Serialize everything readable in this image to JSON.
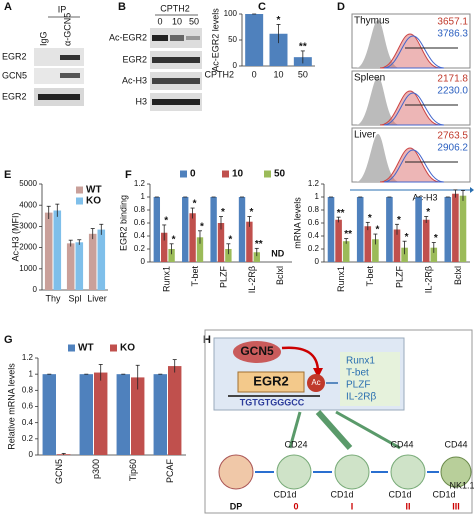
{
  "panel_labels": [
    "A",
    "B",
    "C",
    "D",
    "E",
    "F",
    "G",
    "H"
  ],
  "blots": {
    "A": {
      "header": "IP",
      "lanes": [
        "IgG",
        "α-GCN5"
      ],
      "rows": [
        "EGR2",
        "GCN5",
        "EGR2"
      ]
    },
    "B": {
      "header": "CPTH2",
      "lanes": [
        "0",
        "10",
        "50"
      ],
      "rows": [
        "Ac-EGR2",
        "EGR2",
        "Ac-H3",
        "H3"
      ]
    }
  },
  "histograms": {
    "axis_label": "Ac-H3",
    "panels": [
      {
        "tissue": "Thymus",
        "wt": "3657.1",
        "ko": "3786.3"
      },
      {
        "tissue": "Spleen",
        "wt": "2171.8",
        "ko": "2230.0"
      },
      {
        "tissue": "Liver",
        "wt": "2763.5",
        "ko": "2906.2"
      }
    ]
  },
  "chart_data": [
    {
      "type": "bar",
      "ylabel": "Ac-EGR2 levels",
      "xlabel": "CPTH2",
      "categories": [
        "0",
        "10",
        "50"
      ],
      "ylim": [
        0,
        100
      ],
      "yticks": [
        0,
        50,
        100
      ],
      "series": [
        {
          "color": "#4f81bd",
          "values": [
            100,
            62,
            17
          ],
          "errors": [
            0,
            18,
            12
          ],
          "significance": [
            null,
            "*",
            "**"
          ]
        }
      ]
    },
    {
      "type": "bar",
      "ylabel": "Ac-H3 (MFI)",
      "categories": [
        "Thy",
        "Spl",
        "Liver"
      ],
      "ylim": [
        0,
        5000
      ],
      "yticks": [
        0,
        1000,
        2000,
        3000,
        4000,
        5000
      ],
      "legend": "top-right",
      "series": [
        {
          "name": "WT",
          "color": "#c9a09a",
          "values": [
            3650,
            2200,
            2650
          ],
          "errors": [
            300,
            150,
            250
          ]
        },
        {
          "name": "KO",
          "color": "#7fbfea",
          "values": [
            3750,
            2250,
            2850
          ],
          "errors": [
            300,
            120,
            250
          ]
        }
      ]
    },
    {
      "type": "bar",
      "ylabel": "EGR2 binding",
      "categories": [
        "Runx1",
        "T-bet",
        "PLZF",
        "IL-2Rβ",
        "Bclxl"
      ],
      "ylim": [
        0,
        1.2
      ],
      "yticks": [
        0,
        0.2,
        0.4,
        0.6,
        0.8,
        1,
        1.2
      ],
      "legend": "top",
      "missing_label": "ND",
      "series": [
        {
          "name": "0",
          "color": "#4f81bd",
          "values": [
            1,
            1,
            1,
            1,
            null
          ],
          "errors": [
            0,
            0,
            0,
            0,
            null
          ]
        },
        {
          "name": "10",
          "color": "#c0504d",
          "values": [
            0.45,
            0.75,
            0.6,
            0.62,
            null
          ],
          "errors": [
            0.12,
            0.08,
            0.1,
            0.08,
            null
          ],
          "significance": [
            "*",
            "*",
            "*",
            "*",
            null
          ]
        },
        {
          "name": "50",
          "color": "#9bbb59",
          "values": [
            0.2,
            0.38,
            0.2,
            0.15,
            null
          ],
          "errors": [
            0.08,
            0.1,
            0.08,
            0.06,
            null
          ],
          "significance": [
            "*",
            "*",
            "*",
            "**",
            null
          ]
        }
      ]
    },
    {
      "type": "bar",
      "ylabel": "mRNA levels",
      "categories": [
        "Runx1",
        "T-bet",
        "PLZF",
        "IL-2Rβ",
        "Bclxl"
      ],
      "ylim": [
        0,
        1.2
      ],
      "yticks": [
        0,
        0.2,
        0.4,
        0.6,
        0.8,
        1,
        1.2
      ],
      "series": [
        {
          "color": "#4f81bd",
          "values": [
            1,
            1,
            1,
            1,
            1
          ],
          "errors": [
            0,
            0,
            0,
            0,
            0
          ]
        },
        {
          "color": "#c0504d",
          "values": [
            0.65,
            0.55,
            0.5,
            0.65,
            1.05
          ],
          "errors": [
            0.04,
            0.06,
            0.08,
            0.05,
            0.06
          ],
          "significance": [
            "**",
            "*",
            "*",
            "*",
            null
          ]
        },
        {
          "color": "#9bbb59",
          "values": [
            0.32,
            0.35,
            0.22,
            0.22,
            1.02
          ],
          "errors": [
            0.04,
            0.08,
            0.1,
            0.08,
            0.08
          ],
          "significance": [
            "**",
            "*",
            "*",
            "*",
            null
          ]
        }
      ]
    },
    {
      "type": "bar",
      "ylabel": "Relative mRNA levels",
      "categories": [
        "GCN5",
        "p300",
        "Tip60",
        "PCAF"
      ],
      "ylim": [
        0,
        1.2
      ],
      "yticks": [
        0,
        0.2,
        0.4,
        0.6,
        0.8,
        1,
        1.2
      ],
      "legend": "top",
      "series": [
        {
          "name": "WT",
          "color": "#4f81bd",
          "values": [
            1,
            1,
            1,
            1
          ],
          "errors": [
            0,
            0,
            0,
            0
          ]
        },
        {
          "name": "KO",
          "color": "#c0504d",
          "values": [
            0.01,
            1.02,
            0.96,
            1.1
          ],
          "errors": [
            0.01,
            0.1,
            0.15,
            0.08
          ]
        }
      ]
    }
  ],
  "diagram": {
    "enzyme": "GCN5",
    "mark": "Ac",
    "factor": "EGR2",
    "motif": "TGTGTGGGCC",
    "targets": [
      "Runx1",
      "T-bet",
      "PLZF",
      "IL-2Rβ"
    ],
    "markers": [
      "CD24",
      "CD44",
      "CD44"
    ],
    "cd1d": [
      "CD1d",
      "CD1d",
      "CD1d",
      "CD1d"
    ],
    "nk": "NK1.1",
    "stages": [
      "DP",
      "0",
      "I",
      "II",
      "III"
    ]
  }
}
